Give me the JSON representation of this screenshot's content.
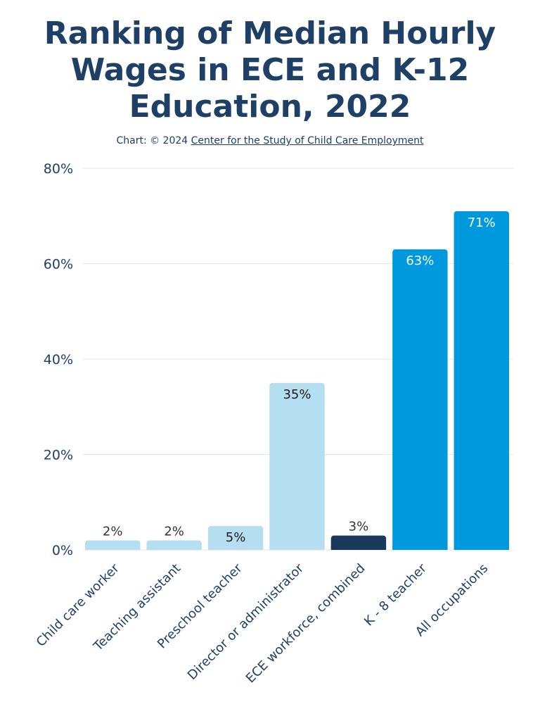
{
  "title_lines": [
    "Ranking of Median Hourly",
    "Wages in ECE and K-12",
    "Education, 2022"
  ],
  "credit": {
    "prefix": "Chart: © 2024 ",
    "link_text": "Center for the Study of Child Care Employment"
  },
  "colors": {
    "light": "#b5dff0",
    "dark": "#1a3a5c",
    "bright": "#0099dd",
    "grid": "#e6e6e6",
    "text_dark": "#1a1a1a",
    "text_light": "#ffffff"
  },
  "chart_data": {
    "type": "bar",
    "categories": [
      "Child care worker",
      "Teaching assistant",
      "Preschool teacher",
      "Director or administrator",
      "ECE workforce, combined",
      "K - 8 teacher",
      "All occupations"
    ],
    "values": [
      2,
      2,
      5,
      35,
      3,
      63,
      71
    ],
    "value_labels": [
      "2%",
      "2%",
      "5%",
      "35%",
      "3%",
      "63%",
      "71%"
    ],
    "bar_colors": [
      "light",
      "light",
      "light",
      "light",
      "dark",
      "bright",
      "bright"
    ],
    "ylim": [
      0,
      80
    ],
    "yticks": [
      0,
      20,
      40,
      60,
      80
    ],
    "ytick_labels": [
      "0%",
      "20%",
      "40%",
      "60%",
      "80%"
    ],
    "grid": true,
    "title": "Ranking of Median Hourly Wages in ECE and K-12 Education, 2022"
  }
}
